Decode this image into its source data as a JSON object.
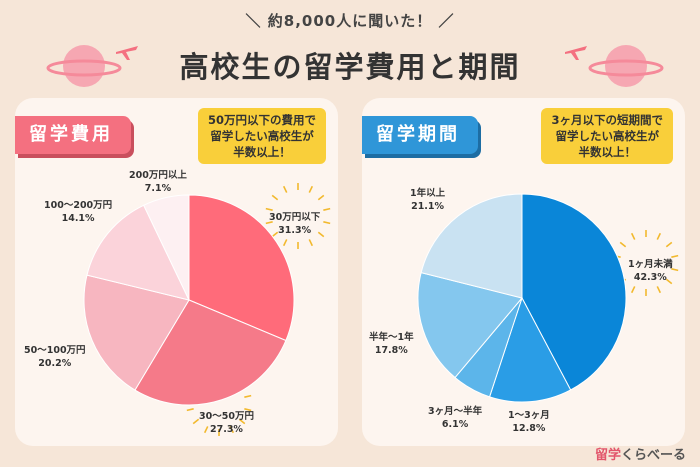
{
  "header": {
    "survey": "＼ 約8,000人に聞いた！ ／",
    "title": "高校生の留学費用と期間"
  },
  "colors": {
    "cost": [
      "#ff6b7a",
      "#f57a89",
      "#f7b6c0",
      "#fbd3da",
      "#fdf0f2"
    ],
    "period": [
      "#0a86d8",
      "#2a9de6",
      "#5cb5ea",
      "#84c7ee",
      "#c9e2f2"
    ]
  },
  "chart_data": [
    {
      "type": "pie",
      "title": "留学費用",
      "note": [
        "50万円以下の費用で",
        "留学したい高校生が",
        "半数以上！"
      ],
      "slices": [
        {
          "label": "30万円以下",
          "pct": "31.3%",
          "value": 31.3
        },
        {
          "label": "30〜50万円",
          "pct": "27.3%",
          "value": 27.3
        },
        {
          "label": "50〜100万円",
          "pct": "20.2%",
          "value": 20.2
        },
        {
          "label": "100〜200万円",
          "pct": "14.1%",
          "value": 14.1
        },
        {
          "label": "200万円以上",
          "pct": "7.1%",
          "value": 7.1
        }
      ]
    },
    {
      "type": "pie",
      "title": "留学期間",
      "note": [
        "3ヶ月以下の短期間で",
        "留学したい高校生が",
        "半数以上！"
      ],
      "slices": [
        {
          "label": "1ヶ月未満",
          "pct": "42.3%",
          "value": 42.3
        },
        {
          "label": "1〜3ヶ月",
          "pct": "12.8%",
          "value": 12.8
        },
        {
          "label": "3ヶ月〜半年",
          "pct": "6.1%",
          "value": 6.1
        },
        {
          "label": "半年〜1年",
          "pct": "17.8%",
          "value": 17.8
        },
        {
          "label": "1年以上",
          "pct": "21.1%",
          "value": 21.1
        }
      ]
    }
  ],
  "brand": {
    "part1": "留学",
    "part2": "くらべーる"
  }
}
